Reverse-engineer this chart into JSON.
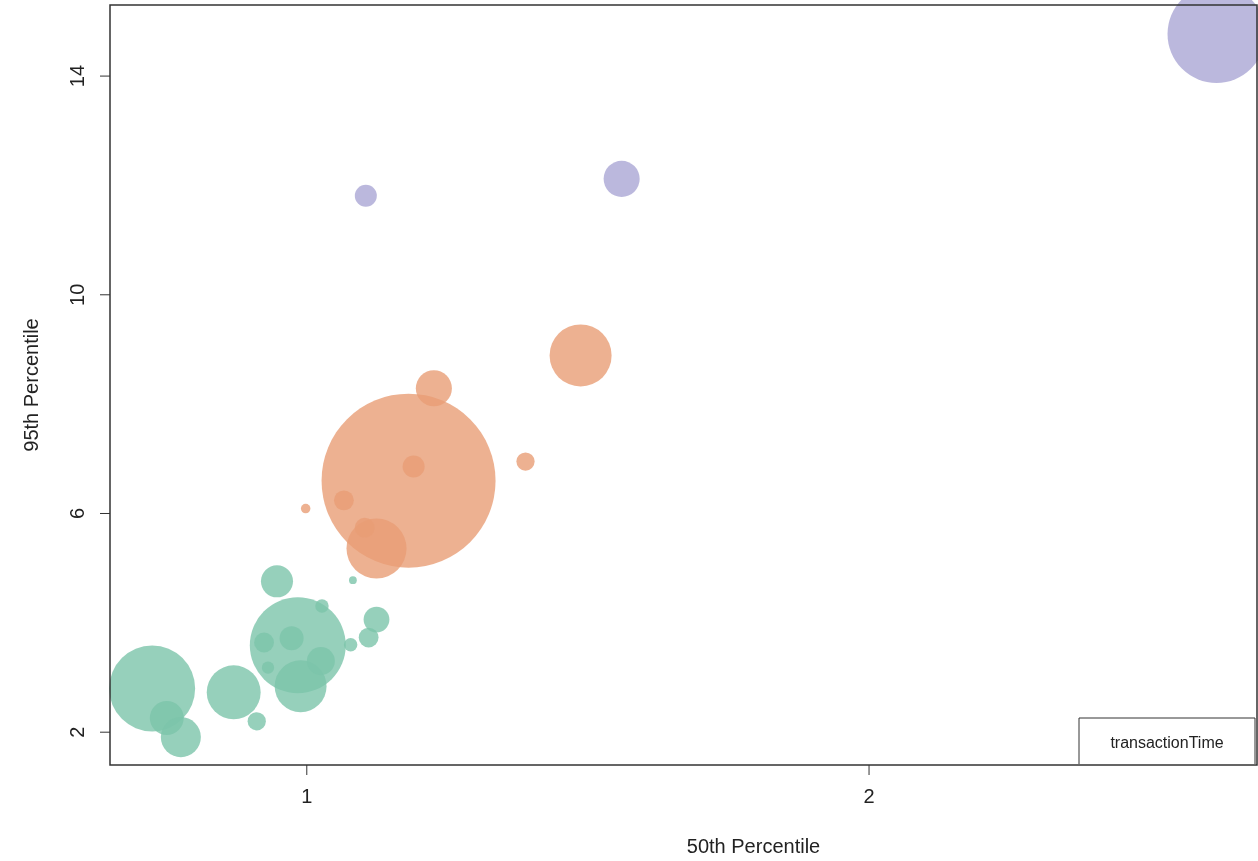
{
  "chart_data": {
    "type": "bubble",
    "xlabel": "50th Percentile",
    "ylabel": "95th Percentile",
    "legend_title": "transactionTime",
    "xlim": [
      0.65,
      2.69
    ],
    "ylim": [
      1.4,
      15.3
    ],
    "xticks": [
      1,
      2
    ],
    "yticks": [
      2,
      6,
      10,
      14
    ],
    "series": [
      {
        "color": "#7cc4aa",
        "x": [
          0.725,
          0.751,
          0.776,
          0.87,
          0.911,
          0.947,
          0.984,
          0.989,
          0.924,
          0.973,
          0.931,
          1.025,
          1.027,
          1.078,
          1.082,
          1.11,
          1.124
        ],
        "values": [
          2.8,
          2.26,
          1.91,
          2.73,
          2.2,
          4.76,
          3.59,
          2.84,
          3.64,
          3.72,
          3.18,
          3.3,
          4.31,
          3.6,
          4.78,
          3.73,
          4.06
        ],
        "sizes": [
          0.244,
          0.038,
          0.053,
          0.096,
          0.011,
          0.034,
          0.304,
          0.089,
          0.013,
          0.019,
          0.005,
          0.026,
          0.006,
          0.006,
          0.002,
          0.013,
          0.022
        ]
      },
      {
        "color": "#e89d75",
        "x": [
          1.181,
          1.124,
          1.103,
          1.066,
          0.998,
          1.19,
          1.226,
          1.389,
          1.487
        ],
        "values": [
          6.6,
          5.36,
          5.74,
          6.24,
          6.09,
          6.86,
          8.29,
          6.95,
          8.89
        ],
        "sizes": [
          1,
          0.119,
          0.013,
          0.013,
          0.003,
          0.016,
          0.043,
          0.011,
          0.127
        ]
      },
      {
        "color": "#aaa6d4",
        "x": [
          1.105,
          1.56,
          2.618
        ],
        "values": [
          11.81,
          12.12,
          14.77
        ],
        "sizes": [
          0.016,
          0.043,
          0.317
        ]
      }
    ]
  }
}
